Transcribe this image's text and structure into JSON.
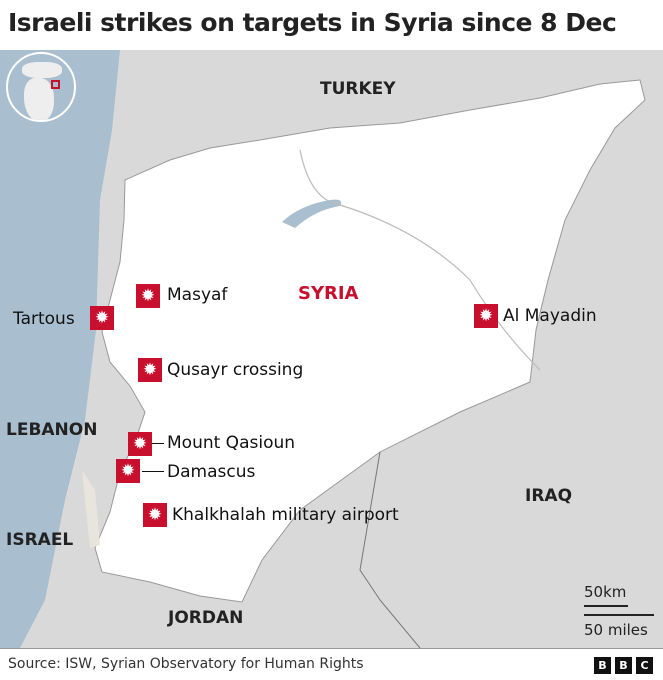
{
  "title": "Israeli strikes on targets in Syria since 8 Dec",
  "countries": {
    "turkey": "TURKEY",
    "syria": "SYRIA",
    "lebanon": "LEBANON",
    "israel": "ISRAEL",
    "jordan": "JORDAN",
    "iraq": "IRAQ"
  },
  "strikes": [
    {
      "name": "Masyaf",
      "icon": "explosion-icon"
    },
    {
      "name": "Tartous",
      "icon": "explosion-icon"
    },
    {
      "name": "Qusayr crossing",
      "icon": "explosion-icon"
    },
    {
      "name": "Mount Qasioun",
      "icon": "explosion-icon"
    },
    {
      "name": "Damascus",
      "icon": "explosion-icon"
    },
    {
      "name": "Khalkhalah military airport",
      "icon": "explosion-icon"
    },
    {
      "name": "Al Mayadin",
      "icon": "explosion-icon"
    }
  ],
  "scale": {
    "km": "50km",
    "miles": "50 miles"
  },
  "source": "Source: ISW, Syrian Observatory for Human Rights",
  "logo": [
    "B",
    "B",
    "C"
  ],
  "colors": {
    "marker": "#c8102e",
    "sea": "#a9bfcf",
    "syria": "#ffffff",
    "land": "#d9d9d9"
  }
}
